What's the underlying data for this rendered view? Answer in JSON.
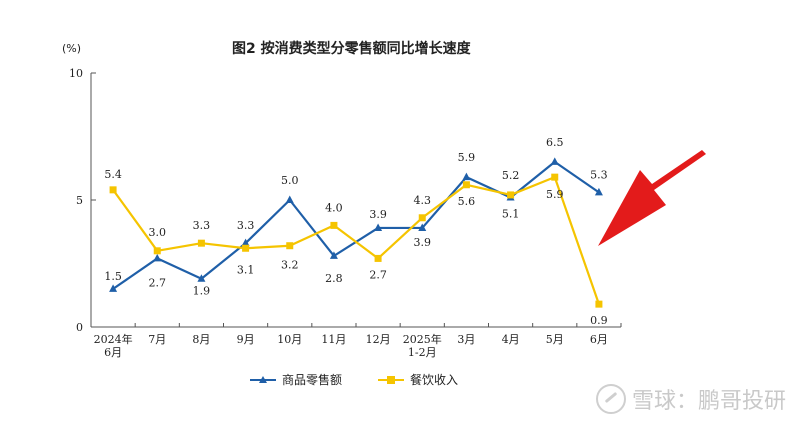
{
  "title": "图2  按消费类型分零售额同比增长速度",
  "unit_label": "(%)",
  "watermark": "雪球：鹏哥投研",
  "colors": {
    "retail": "#1f5fa8",
    "catering": "#f5c400",
    "arrow": "#e31b1b",
    "axis": "#555555"
  },
  "legend": {
    "retail_label": "商品零售额",
    "catering_label": "餐饮收入"
  },
  "chart_data": {
    "type": "line",
    "title": "图2  按消费类型分零售额同比增长速度",
    "ylabel": "(%)",
    "xlabel": "",
    "ylim": [
      0,
      10
    ],
    "yticks": [
      0,
      5,
      10
    ],
    "grid": false,
    "legend_position": "bottom",
    "categories": [
      "2024年6月",
      "7月",
      "8月",
      "9月",
      "10月",
      "11月",
      "12月",
      "2025年1-2月",
      "3月",
      "4月",
      "5月",
      "6月"
    ],
    "category_lines": [
      [
        "2024年",
        "6月"
      ],
      [
        "7月"
      ],
      [
        "8月"
      ],
      [
        "9月"
      ],
      [
        "10月"
      ],
      [
        "11月"
      ],
      [
        "12月"
      ],
      [
        "2025年",
        "1-2月"
      ],
      [
        "3月"
      ],
      [
        "4月"
      ],
      [
        "5月"
      ],
      [
        "6月"
      ]
    ],
    "series": [
      {
        "name": "商品零售额",
        "marker": "triangle",
        "values": [
          1.5,
          2.7,
          1.9,
          3.3,
          5.0,
          2.8,
          3.9,
          3.9,
          5.9,
          5.1,
          6.5,
          5.3
        ]
      },
      {
        "name": "餐饮收入",
        "marker": "square",
        "values": [
          5.4,
          3.0,
          3.3,
          3.1,
          3.2,
          4.0,
          2.7,
          4.3,
          5.6,
          5.2,
          5.9,
          0.9
        ]
      }
    ],
    "labels": {
      "商品零售额": [
        "1.5",
        "2.7",
        "1.9",
        "3.3",
        "5.0",
        "2.8",
        "3.9",
        "3.9",
        "5.9",
        "5.1",
        "6.5",
        "5.3"
      ],
      "餐饮收入": [
        "5.4",
        "3.0",
        "3.3",
        "3.1",
        "3.2",
        "4.0",
        "2.7",
        "4.3",
        "5.6",
        "5.2",
        "5.9",
        "0.9"
      ]
    }
  }
}
